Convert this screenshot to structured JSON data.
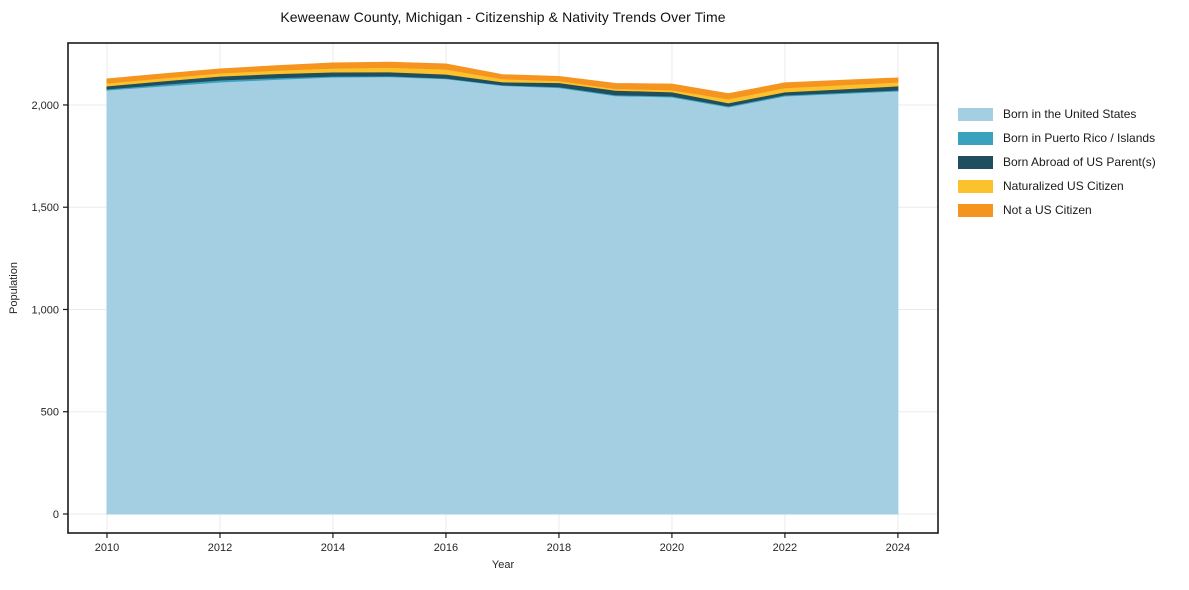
{
  "chart_data": {
    "type": "area",
    "stacked": true,
    "title": "Keweenaw County, Michigan - Citizenship & Nativity Trends Over Time",
    "xlabel": "Year",
    "ylabel": "Population",
    "x": [
      2010,
      2011,
      2012,
      2013,
      2014,
      2015,
      2016,
      2017,
      2018,
      2019,
      2020,
      2021,
      2022,
      2023,
      2024
    ],
    "series": [
      {
        "name": "Born in the United States",
        "color": "#a4cfe3",
        "values": [
          2073,
          2093,
          2112,
          2125,
          2136,
          2138,
          2128,
          2095,
          2085,
          2045,
          2039,
          1990,
          2044,
          2056,
          2068
        ]
      },
      {
        "name": "Born in Puerto Rico / Islands",
        "color": "#3ba2bd",
        "values": [
          5,
          8,
          10,
          8,
          5,
          4,
          3,
          3,
          4,
          5,
          5,
          5,
          5,
          5,
          5
        ]
      },
      {
        "name": "Born Abroad of US Parent(s)",
        "color": "#1f4e5f",
        "values": [
          15,
          17,
          19,
          20,
          20,
          20,
          20,
          15,
          20,
          22,
          20,
          15,
          15,
          17,
          20
        ]
      },
      {
        "name": "Naturalized US Citizen",
        "color": "#fcc22d",
        "values": [
          14,
          14,
          15,
          17,
          19,
          22,
          24,
          15,
          10,
          8,
          10,
          20,
          20,
          20,
          19
        ]
      },
      {
        "name": "Not a US Citizen",
        "color": "#f5941e",
        "values": [
          20,
          20,
          20,
          22,
          25,
          25,
          25,
          20,
          20,
          25,
          28,
          25,
          24,
          22,
          20
        ]
      }
    ],
    "x_ticks": {
      "values": [
        2010,
        2012,
        2014,
        2016,
        2018,
        2020,
        2022,
        2024
      ],
      "labels": [
        "2010",
        "2012",
        "2014",
        "2016",
        "2018",
        "2020",
        "2022",
        "2024"
      ]
    },
    "y_ticks": {
      "values": [
        0,
        500,
        1000,
        1500,
        2000
      ],
      "labels": [
        "0",
        "500",
        "1,000",
        "1,500",
        "2,000"
      ]
    },
    "xlim": [
      2009.31,
      2024.71
    ],
    "ylim": [
      -93,
      2303
    ],
    "grid": true,
    "grid_color": "#ebebeb",
    "spine_color": "#1a1a1a",
    "tick_color": "#262626",
    "background": "#ffffff",
    "legend_position": "right"
  }
}
